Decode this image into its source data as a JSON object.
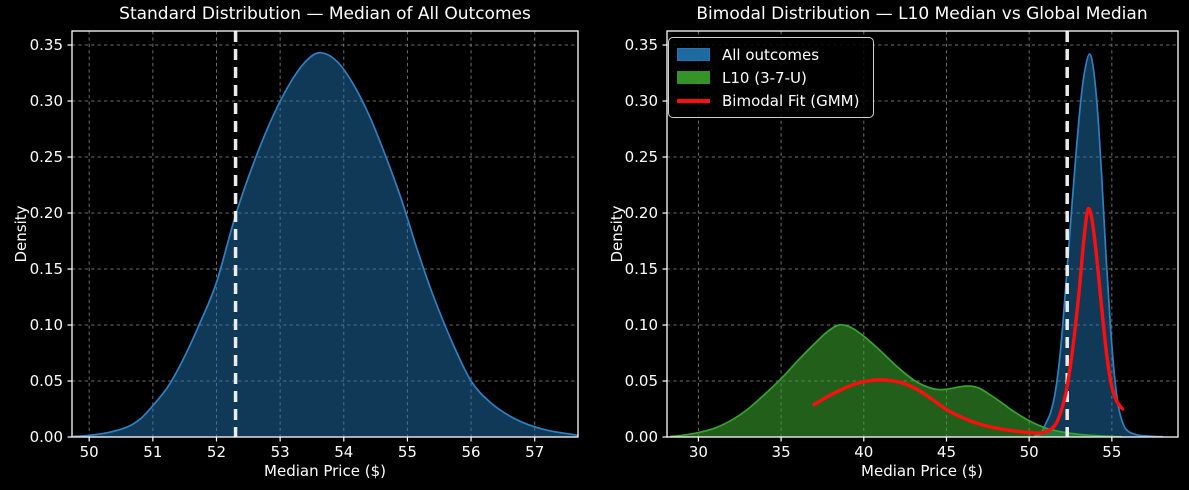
{
  "figure": {
    "background": "#000000",
    "text_color": "#ffffff",
    "spine_color": "#ffffff",
    "grid_color": "#8a8a8a"
  },
  "chart_data": [
    {
      "type": "area",
      "variant": "kde-density",
      "title": "Standard Distribution — Median of All Outcomes",
      "xlabel": "Median Price ($)",
      "ylabel": "Density",
      "xlim": [
        49.73,
        57.68
      ],
      "ylim": [
        0,
        0.3625
      ],
      "xticks": [
        "50",
        "51",
        "52",
        "53",
        "54",
        "55",
        "56",
        "57"
      ],
      "yticks": [
        "0.00",
        "0.05",
        "0.10",
        "0.15",
        "0.20",
        "0.25",
        "0.30",
        "0.35"
      ],
      "grid": true,
      "median_line": {
        "x": 52.3,
        "color": "#ebebeb"
      },
      "series": [
        {
          "id": "all-outcomes-median-kde",
          "style": "area",
          "color": "#2e80c0",
          "fill": "#1f77b4",
          "fill_opacity": 0.48,
          "legend": false,
          "points": [
            [
              49.75,
              0.0005
            ],
            [
              50.0,
              0.0015
            ],
            [
              50.3,
              0.004
            ],
            [
              50.6,
              0.009
            ],
            [
              50.8,
              0.016
            ],
            [
              51.0,
              0.028
            ],
            [
              51.25,
              0.046
            ],
            [
              51.5,
              0.072
            ],
            [
              51.75,
              0.103
            ],
            [
              52.0,
              0.138
            ],
            [
              52.3,
              0.198
            ],
            [
              52.6,
              0.247
            ],
            [
              52.9,
              0.288
            ],
            [
              53.2,
              0.32
            ],
            [
              53.45,
              0.338
            ],
            [
              53.65,
              0.343
            ],
            [
              53.9,
              0.335
            ],
            [
              54.15,
              0.315
            ],
            [
              54.4,
              0.287
            ],
            [
              54.65,
              0.252
            ],
            [
              54.9,
              0.213
            ],
            [
              55.15,
              0.168
            ],
            [
              55.4,
              0.127
            ],
            [
              55.7,
              0.085
            ],
            [
              56.0,
              0.05
            ],
            [
              56.3,
              0.031
            ],
            [
              56.6,
              0.019
            ],
            [
              56.9,
              0.011
            ],
            [
              57.2,
              0.006
            ],
            [
              57.45,
              0.0035
            ],
            [
              57.68,
              0.0015
            ]
          ]
        }
      ]
    },
    {
      "type": "area",
      "variant": "kde-density",
      "title": "Bimodal Distribution — L10 Median vs Global Median",
      "xlabel": "Median Price ($)",
      "ylabel": "Density",
      "xlim": [
        28.1,
        59.0
      ],
      "ylim": [
        0,
        0.3625
      ],
      "xticks": [
        "30",
        "35",
        "40",
        "45",
        "50",
        "55"
      ],
      "yticks": [
        "0.00",
        "0.05",
        "0.10",
        "0.15",
        "0.20",
        "0.25",
        "0.30",
        "0.35"
      ],
      "grid": true,
      "legend_position": "upper left",
      "median_line": {
        "x": 52.3,
        "color": "#ebebeb"
      },
      "series": [
        {
          "id": "all-outcomes",
          "name": "All outcomes",
          "style": "area",
          "color": "#2e80c0",
          "fill": "#1f77b4",
          "fill_opacity": 0.48,
          "legend": true,
          "points": [
            [
              50.3,
              0.0008
            ],
            [
              50.7,
              0.003
            ],
            [
              51.0,
              0.012
            ],
            [
              51.3,
              0.022
            ],
            [
              51.6,
              0.042
            ],
            [
              51.9,
              0.078
            ],
            [
              52.2,
              0.132
            ],
            [
              52.5,
              0.19
            ],
            [
              52.8,
              0.247
            ],
            [
              53.1,
              0.297
            ],
            [
              53.35,
              0.326
            ],
            [
              53.65,
              0.342
            ],
            [
              53.9,
              0.327
            ],
            [
              54.15,
              0.288
            ],
            [
              54.4,
              0.229
            ],
            [
              54.65,
              0.161
            ],
            [
              54.9,
              0.102
            ],
            [
              55.15,
              0.056
            ],
            [
              55.4,
              0.027
            ],
            [
              55.7,
              0.011
            ],
            [
              56.0,
              0.005
            ],
            [
              56.5,
              0.002
            ],
            [
              57.0,
              0.001
            ],
            [
              57.6,
              0.0005
            ],
            [
              58.1,
              0.0002
            ]
          ]
        },
        {
          "id": "l10-kde",
          "name": "L10 (3-7-U)",
          "style": "area",
          "color": "#36a42e",
          "fill": "#3aa32e",
          "fill_opacity": 0.58,
          "legend": true,
          "points": [
            [
              28.3,
              0.0005
            ],
            [
              29.0,
              0.0015
            ],
            [
              30.0,
              0.004
            ],
            [
              31.0,
              0.008
            ],
            [
              32.0,
              0.015
            ],
            [
              33.0,
              0.025
            ],
            [
              34.0,
              0.038
            ],
            [
              35.0,
              0.052
            ],
            [
              36.0,
              0.068
            ],
            [
              37.0,
              0.083
            ],
            [
              37.8,
              0.094
            ],
            [
              38.5,
              0.1
            ],
            [
              39.2,
              0.098
            ],
            [
              40.0,
              0.09
            ],
            [
              41.0,
              0.077
            ],
            [
              42.0,
              0.063
            ],
            [
              43.0,
              0.051
            ],
            [
              43.7,
              0.0455
            ],
            [
              44.4,
              0.0425
            ],
            [
              45.1,
              0.0428
            ],
            [
              45.8,
              0.0448
            ],
            [
              46.4,
              0.0455
            ],
            [
              47.0,
              0.0435
            ],
            [
              47.6,
              0.038
            ],
            [
              48.3,
              0.031
            ],
            [
              49.0,
              0.0235
            ],
            [
              50.0,
              0.0145
            ],
            [
              51.0,
              0.008
            ],
            [
              52.0,
              0.0045
            ],
            [
              53.0,
              0.0024
            ],
            [
              54.0,
              0.0012
            ],
            [
              55.0,
              0.0005
            ],
            [
              55.6,
              0.0002
            ]
          ]
        },
        {
          "id": "bimodal-fit",
          "name": "Bimodal Fit (GMM)",
          "style": "line",
          "color": "#ff0e0e",
          "legend": true,
          "points": [
            [
              37.0,
              0.029
            ],
            [
              37.8,
              0.036
            ],
            [
              38.6,
              0.042
            ],
            [
              39.4,
              0.047
            ],
            [
              40.2,
              0.05
            ],
            [
              41.0,
              0.051
            ],
            [
              41.8,
              0.05
            ],
            [
              42.6,
              0.047
            ],
            [
              43.4,
              0.041
            ],
            [
              44.2,
              0.033
            ],
            [
              45.0,
              0.0245
            ],
            [
              46.0,
              0.017
            ],
            [
              47.0,
              0.0115
            ],
            [
              48.0,
              0.008
            ],
            [
              49.0,
              0.0055
            ],
            [
              50.0,
              0.004
            ],
            [
              50.6,
              0.0035
            ],
            [
              51.2,
              0.006
            ],
            [
              51.7,
              0.014
            ],
            [
              52.2,
              0.038
            ],
            [
              52.6,
              0.075
            ],
            [
              53.0,
              0.127
            ],
            [
              53.3,
              0.175
            ],
            [
              53.55,
              0.203
            ],
            [
              53.8,
              0.194
            ],
            [
              54.1,
              0.158
            ],
            [
              54.4,
              0.113
            ],
            [
              54.7,
              0.072
            ],
            [
              55.0,
              0.045
            ],
            [
              55.3,
              0.032
            ],
            [
              55.65,
              0.025
            ]
          ]
        }
      ]
    }
  ]
}
